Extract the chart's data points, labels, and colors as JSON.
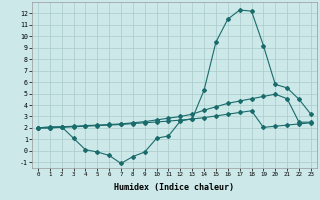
{
  "xlabel": "Humidex (Indice chaleur)",
  "bg_color": "#cce8e8",
  "grid_color": "#aacccc",
  "line_color": "#1a6b6b",
  "xlim": [
    -0.5,
    23.5
  ],
  "ylim": [
    -1.5,
    13.0
  ],
  "xticks": [
    0,
    1,
    2,
    3,
    4,
    5,
    6,
    7,
    8,
    9,
    10,
    11,
    12,
    13,
    14,
    15,
    16,
    17,
    18,
    19,
    20,
    21,
    22,
    23
  ],
  "yticks": [
    -1,
    0,
    1,
    2,
    3,
    4,
    5,
    6,
    7,
    8,
    9,
    10,
    11,
    12
  ],
  "line1_y": [
    2.0,
    2.1,
    2.1,
    1.1,
    0.1,
    -0.1,
    -0.4,
    -1.1,
    -0.5,
    -0.1,
    1.1,
    1.3,
    2.6,
    2.8,
    5.3,
    9.5,
    11.5,
    12.3,
    12.2,
    9.2,
    5.8,
    5.5,
    4.5,
    3.2
  ],
  "line2_y": [
    2.0,
    2.0,
    2.1,
    2.15,
    2.2,
    2.25,
    2.3,
    2.35,
    2.45,
    2.55,
    2.7,
    2.85,
    3.0,
    3.2,
    3.55,
    3.85,
    4.15,
    4.35,
    4.55,
    4.75,
    4.95,
    4.55,
    2.5,
    2.5
  ],
  "line3_y": [
    2.0,
    2.0,
    2.05,
    2.1,
    2.15,
    2.2,
    2.25,
    2.3,
    2.38,
    2.45,
    2.52,
    2.6,
    2.68,
    2.78,
    2.9,
    3.05,
    3.2,
    3.35,
    3.5,
    2.05,
    2.15,
    2.25,
    2.35,
    2.45
  ]
}
